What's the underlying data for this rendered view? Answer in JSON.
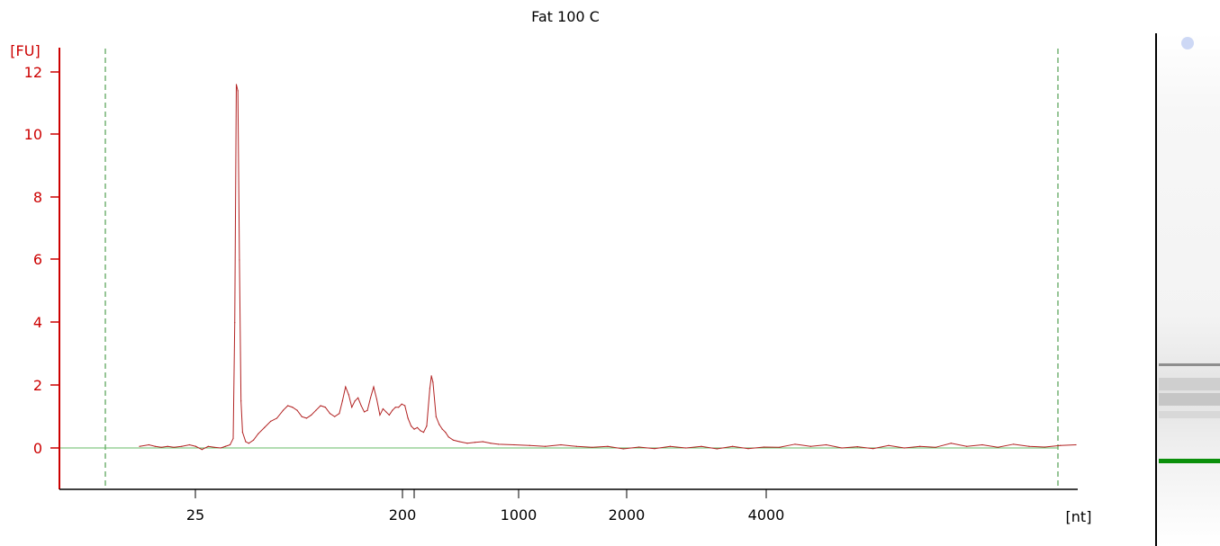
{
  "chart_data": {
    "type": "line",
    "title": "Fat 100 C",
    "ylabel": "[FU]",
    "xlabel": "[nt]",
    "y_ticks": [
      "0",
      "2",
      "4",
      "6",
      "8",
      "10",
      "12"
    ],
    "x_ticks": [
      "25",
      "200",
      "1000",
      "2000",
      "4000"
    ],
    "ylim": [
      -1.2,
      12.6
    ],
    "x_axis_scale": "non-linear (ladder-calibrated)",
    "grid": false,
    "colors": {
      "trace": "#b22222",
      "baseline": "#66bb66",
      "marker_lines": "#2e8b2e",
      "y_axis": "#cc0000",
      "x_axis": "#000000",
      "gel_marker": "#008800"
    },
    "series": [
      {
        "points": [
          [
            0,
            0.05
          ],
          [
            6,
            0.1
          ],
          [
            10,
            0.05
          ],
          [
            14,
            0.02
          ],
          [
            18,
            0.05
          ],
          [
            22,
            0.02
          ],
          [
            27,
            0.05
          ],
          [
            32,
            0.1
          ],
          [
            36,
            0.05
          ],
          [
            40,
            -0.05
          ],
          [
            44,
            0.05
          ],
          [
            48,
            0.02
          ],
          [
            52,
            0.0
          ],
          [
            55,
            0.05
          ],
          [
            58,
            0.1
          ],
          [
            60,
            0.3
          ],
          [
            61,
            4.0
          ],
          [
            62,
            11.6
          ],
          [
            63,
            11.4
          ],
          [
            64,
            6.0
          ],
          [
            65,
            1.5
          ],
          [
            66,
            0.5
          ],
          [
            68,
            0.2
          ],
          [
            70,
            0.15
          ],
          [
            73,
            0.25
          ],
          [
            76,
            0.45
          ],
          [
            80,
            0.65
          ],
          [
            84,
            0.85
          ],
          [
            88,
            0.95
          ],
          [
            92,
            1.2
          ],
          [
            95,
            1.35
          ],
          [
            98,
            1.3
          ],
          [
            101,
            1.2
          ],
          [
            104,
            1.0
          ],
          [
            107,
            0.95
          ],
          [
            110,
            1.05
          ],
          [
            113,
            1.2
          ],
          [
            116,
            1.35
          ],
          [
            119,
            1.3
          ],
          [
            122,
            1.1
          ],
          [
            125,
            1.0
          ],
          [
            128,
            1.1
          ],
          [
            130,
            1.5
          ],
          [
            132,
            1.95
          ],
          [
            134,
            1.7
          ],
          [
            136,
            1.3
          ],
          [
            138,
            1.5
          ],
          [
            140,
            1.6
          ],
          [
            142,
            1.35
          ],
          [
            144,
            1.15
          ],
          [
            146,
            1.2
          ],
          [
            148,
            1.6
          ],
          [
            150,
            1.95
          ],
          [
            152,
            1.55
          ],
          [
            154,
            1.05
          ],
          [
            156,
            1.25
          ],
          [
            158,
            1.15
          ],
          [
            160,
            1.05
          ],
          [
            162,
            1.2
          ],
          [
            164,
            1.3
          ],
          [
            166,
            1.3
          ],
          [
            168,
            1.4
          ],
          [
            170,
            1.35
          ],
          [
            172,
            0.95
          ],
          [
            174,
            0.7
          ],
          [
            176,
            0.6
          ],
          [
            178,
            0.65
          ],
          [
            180,
            0.55
          ],
          [
            182,
            0.5
          ],
          [
            184,
            0.7
          ],
          [
            186,
            1.9
          ],
          [
            187,
            2.3
          ],
          [
            188,
            2.1
          ],
          [
            190,
            1.0
          ],
          [
            192,
            0.75
          ],
          [
            194,
            0.6
          ],
          [
            196,
            0.5
          ],
          [
            198,
            0.35
          ],
          [
            201,
            0.25
          ],
          [
            205,
            0.2
          ],
          [
            210,
            0.15
          ],
          [
            215,
            0.18
          ],
          [
            220,
            0.2
          ],
          [
            225,
            0.15
          ],
          [
            230,
            0.12
          ],
          [
            240,
            0.1
          ],
          [
            250,
            0.08
          ],
          [
            260,
            0.05
          ],
          [
            270,
            0.1
          ],
          [
            280,
            0.05
          ],
          [
            290,
            0.02
          ],
          [
            300,
            0.05
          ],
          [
            310,
            -0.03
          ],
          [
            320,
            0.03
          ],
          [
            330,
            -0.02
          ],
          [
            340,
            0.05
          ],
          [
            350,
            0.0
          ],
          [
            360,
            0.05
          ],
          [
            370,
            -0.03
          ],
          [
            380,
            0.05
          ],
          [
            390,
            -0.02
          ],
          [
            400,
            0.03
          ],
          [
            410,
            0.02
          ],
          [
            420,
            0.12
          ],
          [
            430,
            0.05
          ],
          [
            440,
            0.1
          ],
          [
            450,
            0.0
          ],
          [
            460,
            0.04
          ],
          [
            470,
            -0.02
          ],
          [
            480,
            0.08
          ],
          [
            490,
            0.0
          ],
          [
            500,
            0.05
          ],
          [
            510,
            0.02
          ],
          [
            520,
            0.15
          ],
          [
            530,
            0.05
          ],
          [
            540,
            0.1
          ],
          [
            550,
            0.02
          ],
          [
            560,
            0.12
          ],
          [
            570,
            0.05
          ],
          [
            580,
            0.03
          ],
          [
            590,
            0.08
          ],
          [
            600,
            0.1
          ]
        ]
      }
    ]
  }
}
